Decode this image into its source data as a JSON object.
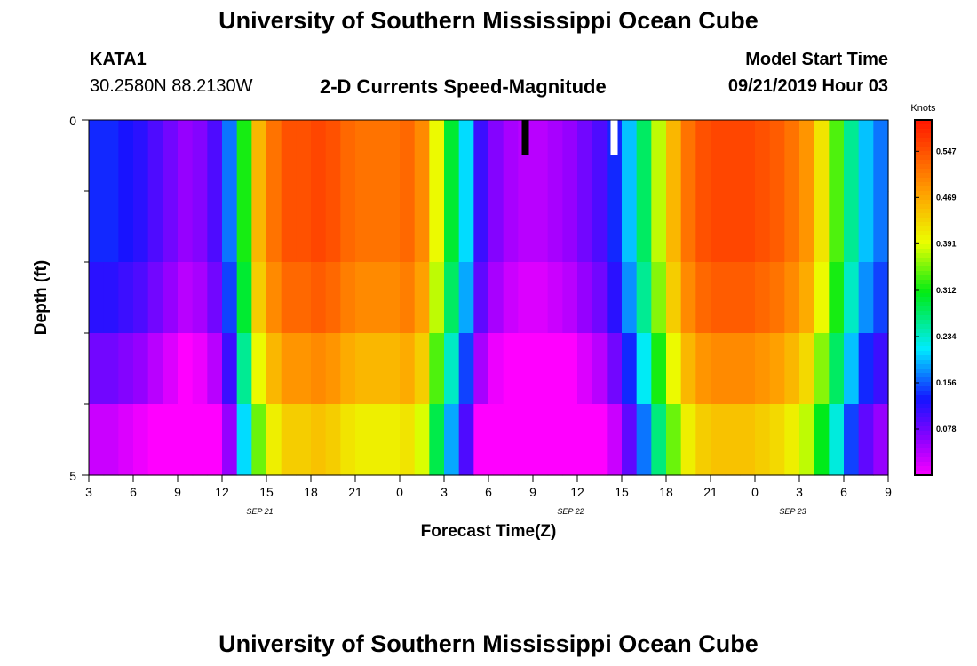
{
  "header": {
    "title": "University of Southern Mississippi Ocean Cube",
    "station_id": "KATA1",
    "coordinates": "30.2580N 88.2130W",
    "plot_title": "2-D Currents Speed-Magnitude",
    "model_label": "Model Start Time",
    "model_time": "09/21/2019 Hour 03"
  },
  "footer": {
    "title": "University of Southern Mississippi Ocean Cube"
  },
  "chart_data": {
    "type": "heatmap",
    "title": "2-D Currents Speed-Magnitude",
    "xlabel": "Forecast Time(Z)",
    "ylabel": "Depth (ft)",
    "y_ticks": [
      "0",
      "5"
    ],
    "ylim": [
      0,
      5
    ],
    "x_ticks": [
      "3",
      "6",
      "9",
      "12",
      "15",
      "18",
      "21",
      "0",
      "3",
      "6",
      "9",
      "12",
      "15",
      "18",
      "21",
      "0",
      "3",
      "6",
      "9"
    ],
    "date_labels": [
      {
        "label": "SEP 21",
        "after_tick": 4
      },
      {
        "label": "SEP 22",
        "after_tick": 11
      },
      {
        "label": "SEP 23",
        "after_tick": 16
      }
    ],
    "colorbar": {
      "label": "Knots",
      "min": 0,
      "max": 0.6,
      "ticks": [
        "0.078",
        "0.156",
        "0.234",
        "0.312",
        "0.391",
        "0.469",
        "0.547"
      ]
    },
    "time_steps": 54,
    "depth_layers": 5,
    "layer_offsets": [
      0.0,
      0.0,
      -0.02,
      -0.06,
      -0.11
    ],
    "speed_profile": [
      0.14,
      0.14,
      0.13,
      0.12,
      0.1,
      0.08,
      0.06,
      0.07,
      0.1,
      0.17,
      0.32,
      0.46,
      0.52,
      0.55,
      0.55,
      0.56,
      0.55,
      0.53,
      0.52,
      0.52,
      0.52,
      0.53,
      0.5,
      0.4,
      0.3,
      0.21,
      0.11,
      0.07,
      0.05,
      0.04,
      0.04,
      0.05,
      0.06,
      0.08,
      0.1,
      0.14,
      0.2,
      0.28,
      0.38,
      0.46,
      0.52,
      0.55,
      0.56,
      0.56,
      0.56,
      0.55,
      0.54,
      0.52,
      0.49,
      0.42,
      0.34,
      0.26,
      0.2,
      0.17
    ],
    "markers": [
      {
        "color": "#000000",
        "time_index": 29
      },
      {
        "color": "#ffffff",
        "time_index": 35
      }
    ]
  }
}
